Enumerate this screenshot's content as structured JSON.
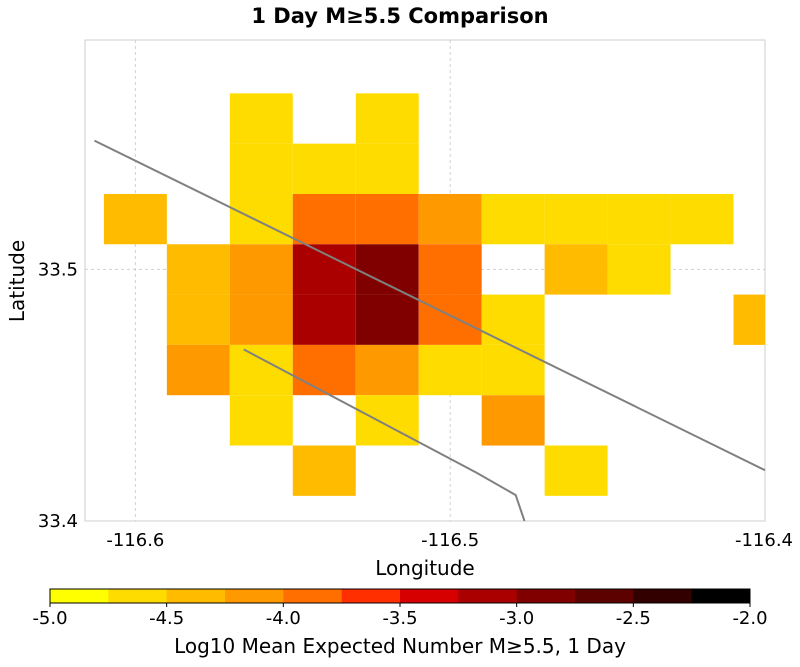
{
  "chart_data": {
    "type": "heatmap",
    "title": "1 Day M≥5.5 Comparison",
    "xlabel": "Longitude",
    "ylabel": "Latitude",
    "xlim": [
      -116.616,
      -116.4
    ],
    "ylim": [
      33.4,
      33.5912
    ],
    "x_ticks": [
      -116.6,
      -116.5,
      -116.4
    ],
    "x_tick_labels": [
      "-116.6",
      "-116.5",
      "-116.4"
    ],
    "y_ticks": [
      33.4,
      33.5
    ],
    "y_tick_labels": [
      "33.4",
      "33.5"
    ],
    "grid": true,
    "cell_size": 0.02,
    "cells": [
      {
        "lon": -116.56,
        "lat": 33.56,
        "value": -4.7
      },
      {
        "lon": -116.52,
        "lat": 33.56,
        "value": -4.7
      },
      {
        "lon": -116.56,
        "lat": 33.54,
        "value": -4.7
      },
      {
        "lon": -116.54,
        "lat": 33.54,
        "value": -4.7
      },
      {
        "lon": -116.52,
        "lat": 33.54,
        "value": -4.7
      },
      {
        "lon": -116.6,
        "lat": 33.52,
        "value": -4.4
      },
      {
        "lon": -116.56,
        "lat": 33.52,
        "value": -4.7
      },
      {
        "lon": -116.54,
        "lat": 33.52,
        "value": -3.9
      },
      {
        "lon": -116.52,
        "lat": 33.52,
        "value": -3.9
      },
      {
        "lon": -116.5,
        "lat": 33.52,
        "value": -4.2
      },
      {
        "lon": -116.48,
        "lat": 33.52,
        "value": -4.7
      },
      {
        "lon": -116.46,
        "lat": 33.52,
        "value": -4.7
      },
      {
        "lon": -116.44,
        "lat": 33.52,
        "value": -4.7
      },
      {
        "lon": -116.42,
        "lat": 33.52,
        "value": -4.7
      },
      {
        "lon": -116.58,
        "lat": 33.5,
        "value": -4.4
      },
      {
        "lon": -116.56,
        "lat": 33.5,
        "value": -4.2
      },
      {
        "lon": -116.54,
        "lat": 33.5,
        "value": -3.1
      },
      {
        "lon": -116.52,
        "lat": 33.5,
        "value": -2.9
      },
      {
        "lon": -116.5,
        "lat": 33.5,
        "value": -3.9
      },
      {
        "lon": -116.46,
        "lat": 33.5,
        "value": -4.4
      },
      {
        "lon": -116.44,
        "lat": 33.5,
        "value": -4.7
      },
      {
        "lon": -116.58,
        "lat": 33.48,
        "value": -4.4
      },
      {
        "lon": -116.56,
        "lat": 33.48,
        "value": -4.2
      },
      {
        "lon": -116.54,
        "lat": 33.48,
        "value": -3.1
      },
      {
        "lon": -116.52,
        "lat": 33.48,
        "value": -2.9
      },
      {
        "lon": -116.5,
        "lat": 33.48,
        "value": -3.9
      },
      {
        "lon": -116.48,
        "lat": 33.48,
        "value": -4.7
      },
      {
        "lon": -116.4,
        "lat": 33.48,
        "value": -4.4
      },
      {
        "lon": -116.58,
        "lat": 33.46,
        "value": -4.2
      },
      {
        "lon": -116.56,
        "lat": 33.46,
        "value": -4.7
      },
      {
        "lon": -116.54,
        "lat": 33.46,
        "value": -3.9
      },
      {
        "lon": -116.52,
        "lat": 33.46,
        "value": -4.2
      },
      {
        "lon": -116.5,
        "lat": 33.46,
        "value": -4.7
      },
      {
        "lon": -116.48,
        "lat": 33.46,
        "value": -4.7
      },
      {
        "lon": -116.56,
        "lat": 33.44,
        "value": -4.7
      },
      {
        "lon": -116.52,
        "lat": 33.44,
        "value": -4.7
      },
      {
        "lon": -116.48,
        "lat": 33.44,
        "value": -4.2
      },
      {
        "lon": -116.54,
        "lat": 33.42,
        "value": -4.4
      },
      {
        "lon": -116.46,
        "lat": 33.42,
        "value": -4.7
      }
    ],
    "fault_traces": [
      [
        [
          -116.613,
          33.5512
        ],
        [
          -116.4,
          33.4202
        ]
      ],
      [
        [
          -116.5656,
          33.4682
        ],
        [
          -116.4916,
          33.4192
        ],
        [
          -116.4792,
          33.4103
        ],
        [
          -116.4764,
          33.4
        ]
      ]
    ],
    "colorbar": {
      "label": "Log10 Mean Expected Number M≥5.5, 1 Day",
      "min": -5.0,
      "max": -2.0,
      "tick_labels": [
        "-5.0",
        "-4.5",
        "-4.0",
        "-3.5",
        "-3.0",
        "-2.5",
        "-2.0"
      ],
      "tick_values": [
        -5.0,
        -4.5,
        -4.0,
        -3.5,
        -3.0,
        -2.5,
        -2.0
      ],
      "colors": [
        "#ffff00",
        "#ffdc00",
        "#ffbb00",
        "#ff9900",
        "#ff6f00",
        "#ff2f00",
        "#d70000",
        "#aa0000",
        "#800000",
        "#5c0000",
        "#330000",
        "#000000"
      ]
    }
  }
}
